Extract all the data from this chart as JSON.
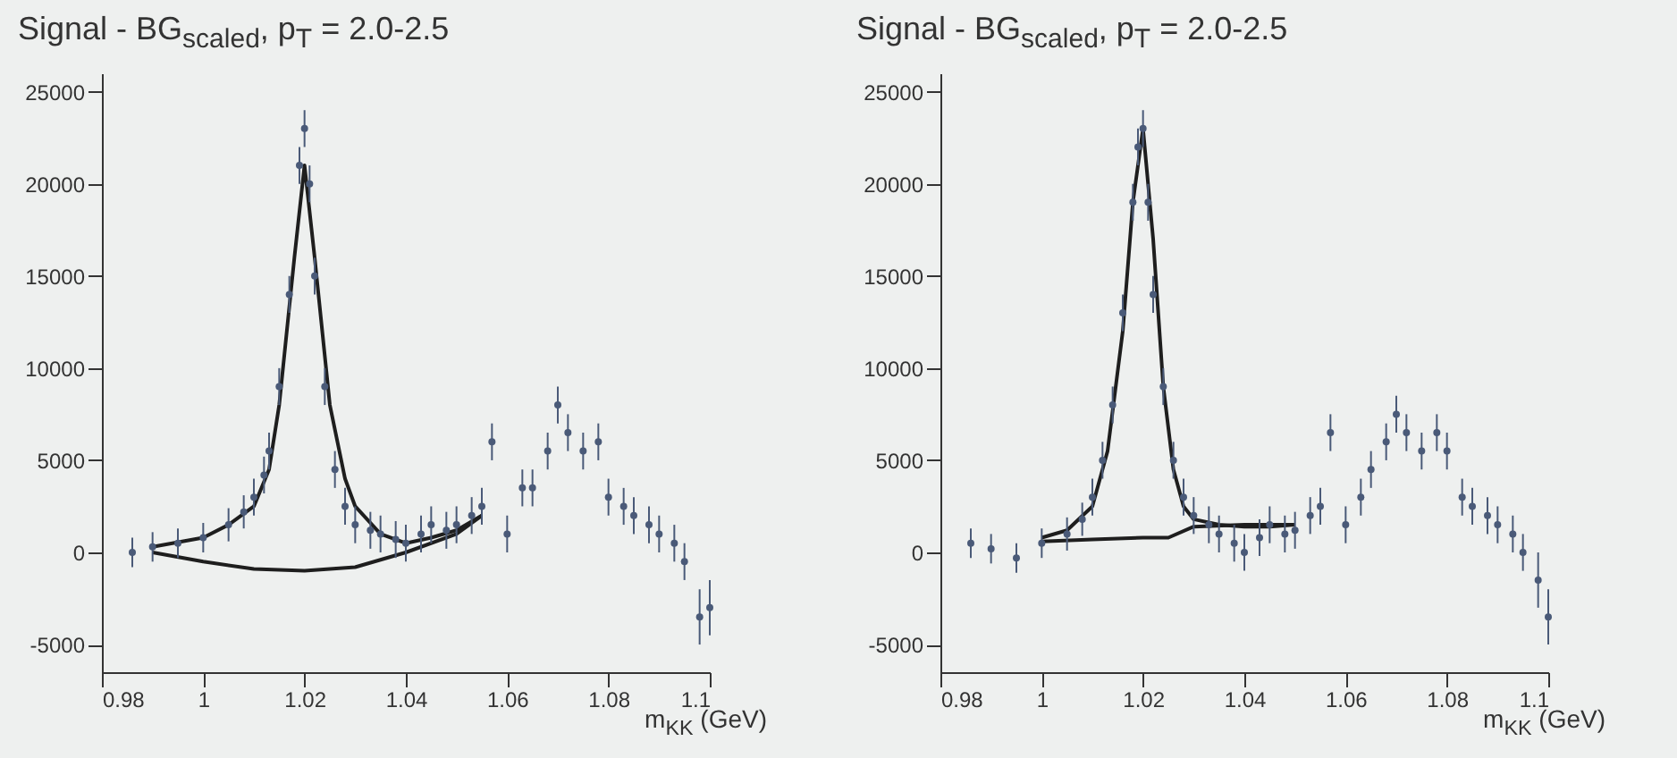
{
  "chart_data": [
    {
      "type": "scatter",
      "title": "Signal - BG$_{scaled}$, p$_{T}$ = 2.0-2.5",
      "xlabel": "m$_{KK}$ (GeV)",
      "xlim": [
        0.98,
        1.1
      ],
      "ylim": [
        -6500,
        26000
      ],
      "xticks": [
        0.98,
        1,
        1.02,
        1.04,
        1.06,
        1.08,
        1.1
      ],
      "yticks": [
        -5000,
        0,
        5000,
        10000,
        15000,
        20000,
        25000
      ],
      "marker": "circle",
      "series": [
        {
          "type": "scatter",
          "color": "#4a5a78",
          "x": [
            0.986,
            0.99,
            0.995,
            1.0,
            1.005,
            1.008,
            1.01,
            1.012,
            1.013,
            1.015,
            1.017,
            1.019,
            1.02,
            1.021,
            1.022,
            1.024,
            1.026,
            1.028,
            1.03,
            1.033,
            1.035,
            1.038,
            1.04,
            1.043,
            1.045,
            1.048,
            1.05,
            1.053,
            1.055,
            1.057,
            1.06,
            1.063,
            1.065,
            1.068,
            1.07,
            1.072,
            1.075,
            1.078,
            1.08,
            1.083,
            1.085,
            1.088,
            1.09,
            1.093,
            1.095,
            1.098,
            1.1
          ],
          "values": [
            0,
            300,
            500,
            800,
            1500,
            2200,
            3000,
            4200,
            5500,
            9000,
            14000,
            21000,
            23000,
            20000,
            15000,
            9000,
            4500,
            2500,
            1500,
            1200,
            1000,
            700,
            500,
            1000,
            1500,
            1200,
            1500,
            2000,
            2500,
            6000,
            1000,
            3500,
            3500,
            5500,
            8000,
            6500,
            5500,
            6000,
            3000,
            2500,
            2000,
            1500,
            1000,
            500,
            -500,
            -3500,
            -3000
          ],
          "errors": [
            800,
            800,
            800,
            800,
            900,
            900,
            1000,
            1000,
            1000,
            1000,
            1000,
            1000,
            1000,
            1000,
            1000,
            1000,
            1000,
            1000,
            1000,
            1000,
            1000,
            1000,
            1000,
            1000,
            1000,
            1000,
            1000,
            1000,
            1000,
            1000,
            1000,
            1000,
            1000,
            1000,
            1000,
            1000,
            1000,
            1000,
            1000,
            1000,
            1000,
            1000,
            1000,
            1000,
            1000,
            1500,
            1500
          ]
        },
        {
          "type": "line",
          "marker": "none",
          "color": "#1e1e1e",
          "x": [
            0.99,
            1.0,
            1.005,
            1.01,
            1.013,
            1.015,
            1.018,
            1.02,
            1.022,
            1.025,
            1.028,
            1.03,
            1.035,
            1.04,
            1.045,
            1.05,
            1.055
          ],
          "values": [
            300,
            800,
            1500,
            2500,
            4500,
            8000,
            16000,
            21000,
            16000,
            8000,
            4000,
            2500,
            1000,
            500,
            800,
            1200,
            2000
          ]
        },
        {
          "type": "line",
          "marker": "none",
          "color": "#1e1e1e",
          "x": [
            0.99,
            1.0,
            1.01,
            1.02,
            1.03,
            1.04,
            1.05,
            1.055
          ],
          "values": [
            0,
            -500,
            -900,
            -1000,
            -800,
            0,
            1000,
            2000
          ]
        }
      ]
    },
    {
      "type": "scatter",
      "title": "Signal - BG$_{scaled}$, p$_{T}$ = 2.0-2.5",
      "xlabel": "m$_{KK}$ (GeV)",
      "xlim": [
        0.98,
        1.1
      ],
      "ylim": [
        -6500,
        26000
      ],
      "xticks": [
        0.98,
        1,
        1.02,
        1.04,
        1.06,
        1.08,
        1.1
      ],
      "yticks": [
        -5000,
        0,
        5000,
        10000,
        15000,
        20000,
        25000
      ],
      "marker": "circle",
      "series": [
        {
          "type": "scatter",
          "color": "#4a5a78",
          "x": [
            0.986,
            0.99,
            0.995,
            1.0,
            1.005,
            1.008,
            1.01,
            1.012,
            1.014,
            1.016,
            1.018,
            1.019,
            1.02,
            1.021,
            1.022,
            1.024,
            1.026,
            1.028,
            1.03,
            1.033,
            1.035,
            1.038,
            1.04,
            1.043,
            1.045,
            1.048,
            1.05,
            1.053,
            1.055,
            1.057,
            1.06,
            1.063,
            1.065,
            1.068,
            1.07,
            1.072,
            1.075,
            1.078,
            1.08,
            1.083,
            1.085,
            1.088,
            1.09,
            1.093,
            1.095,
            1.098,
            1.1
          ],
          "values": [
            500,
            200,
            -300,
            500,
            1000,
            1800,
            3000,
            5000,
            8000,
            13000,
            19000,
            22000,
            23000,
            19000,
            14000,
            9000,
            5000,
            3000,
            2000,
            1500,
            1000,
            500,
            0,
            800,
            1500,
            1000,
            1200,
            2000,
            2500,
            6500,
            1500,
            3000,
            4500,
            6000,
            7500,
            6500,
            5500,
            6500,
            5500,
            3000,
            2500,
            2000,
            1500,
            1000,
            0,
            -1500,
            -3500
          ],
          "errors": [
            800,
            800,
            800,
            800,
            900,
            900,
            1000,
            1000,
            1000,
            1000,
            1000,
            1000,
            1000,
            1000,
            1000,
            1000,
            1000,
            1000,
            1000,
            1000,
            1000,
            1000,
            1000,
            1000,
            1000,
            1000,
            1000,
            1000,
            1000,
            1000,
            1000,
            1000,
            1000,
            1000,
            1000,
            1000,
            1000,
            1000,
            1000,
            1000,
            1000,
            1000,
            1000,
            1000,
            1000,
            1500,
            1500
          ]
        },
        {
          "type": "line",
          "marker": "none",
          "color": "#1e1e1e",
          "x": [
            1.0,
            1.005,
            1.01,
            1.013,
            1.016,
            1.018,
            1.02,
            1.022,
            1.024,
            1.026,
            1.028,
            1.03,
            1.035,
            1.04,
            1.045,
            1.05
          ],
          "values": [
            800,
            1200,
            2500,
            5500,
            12000,
            19000,
            23000,
            17000,
            9000,
            4500,
            2500,
            1800,
            1500,
            1400,
            1400,
            1500
          ]
        },
        {
          "type": "line",
          "marker": "none",
          "color": "#1e1e1e",
          "x": [
            1.0,
            1.01,
            1.02,
            1.025,
            1.03,
            1.04,
            1.05
          ],
          "values": [
            600,
            700,
            800,
            800,
            1400,
            1500,
            1500
          ]
        }
      ]
    }
  ]
}
